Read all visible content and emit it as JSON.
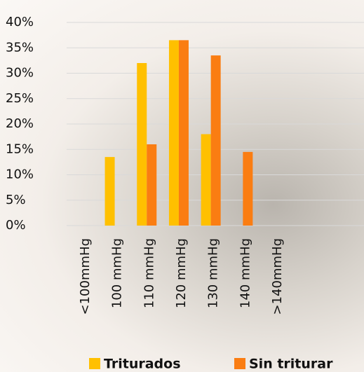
{
  "chart_data": {
    "type": "bar",
    "categories": [
      "<100mmHg",
      "100 mmHg",
      "110 mmHg",
      "120 mmHg",
      "130 mmHg",
      "140 mmHg",
      ">140mmHg"
    ],
    "series": [
      {
        "name": "Triturados",
        "color": "#ffc000",
        "values": [
          0,
          13.5,
          32,
          36.5,
          18,
          0,
          0
        ]
      },
      {
        "name": "Sin triturar",
        "color": "#fa7d12",
        "values": [
          0,
          0,
          16,
          36.5,
          33.5,
          14.5,
          0
        ]
      }
    ],
    "ylim": [
      0,
      40
    ],
    "yticks": [
      {
        "value": 0,
        "label": "0%"
      },
      {
        "value": 5,
        "label": "5%"
      },
      {
        "value": 10,
        "label": "10%"
      },
      {
        "value": 15,
        "label": "15%"
      },
      {
        "value": 20,
        "label": "20%"
      },
      {
        "value": 25,
        "label": "25%"
      },
      {
        "value": 30,
        "label": "30%"
      },
      {
        "value": 35,
        "label": "35%"
      },
      {
        "value": 40,
        "label": "40%"
      }
    ],
    "grid": true,
    "legend": "bottom"
  }
}
